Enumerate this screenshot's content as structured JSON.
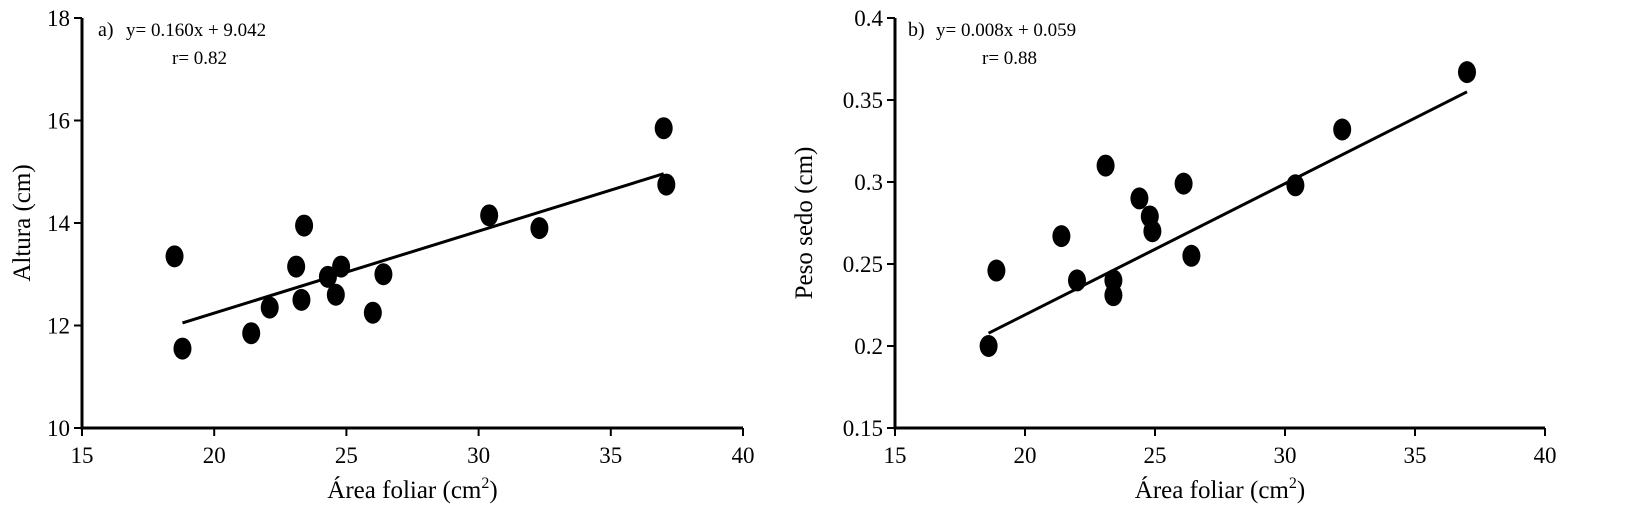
{
  "chart_data": [
    {
      "type": "scatter",
      "panel": "a)",
      "equation": "y= 0.160x + 9.042",
      "r_label": "r= 0.82",
      "xlabel": "Área foliar (cm",
      "xlabel_sup": "2",
      "xlabel_end": ")",
      "ylabel": "Altura (cm)",
      "xlim": [
        15,
        40
      ],
      "ylim": [
        10,
        18
      ],
      "xticks": [
        "15",
        "20",
        "25",
        "30",
        "35",
        "40"
      ],
      "yticks": [
        "10",
        "12",
        "14",
        "16",
        "18"
      ],
      "trendline": {
        "slope": 0.16,
        "intercept": 9.042,
        "x_range": [
          18.8,
          37.0
        ]
      },
      "points": [
        {
          "x": 18.5,
          "y": 13.35
        },
        {
          "x": 18.8,
          "y": 11.55
        },
        {
          "x": 21.4,
          "y": 11.85
        },
        {
          "x": 22.1,
          "y": 12.35
        },
        {
          "x": 23.1,
          "y": 13.15
        },
        {
          "x": 23.3,
          "y": 12.5
        },
        {
          "x": 23.4,
          "y": 13.95
        },
        {
          "x": 24.3,
          "y": 12.95
        },
        {
          "x": 24.6,
          "y": 12.6
        },
        {
          "x": 24.8,
          "y": 13.15
        },
        {
          "x": 26.0,
          "y": 12.25
        },
        {
          "x": 26.4,
          "y": 13.0
        },
        {
          "x": 30.4,
          "y": 14.15
        },
        {
          "x": 32.3,
          "y": 13.9
        },
        {
          "x": 37.0,
          "y": 15.85
        },
        {
          "x": 37.1,
          "y": 14.75
        }
      ]
    },
    {
      "type": "scatter",
      "panel": "b)",
      "equation": "y= 0.008x + 0.059",
      "r_label": "r= 0.88",
      "xlabel": "Área foliar (cm",
      "xlabel_sup": "2",
      "xlabel_end": ")",
      "ylabel": "Peso sedo (cm)",
      "xlim": [
        15,
        40
      ],
      "ylim": [
        0.15,
        0.4
      ],
      "xticks": [
        "15",
        "20",
        "25",
        "30",
        "35",
        "40"
      ],
      "yticks": [
        "0.15",
        "0.2",
        "0.25",
        "0.3",
        "0.35",
        "0.4"
      ],
      "trendline": {
        "slope": 0.008,
        "intercept": 0.059,
        "x_range": [
          18.6,
          37.0
        ]
      },
      "points": [
        {
          "x": 18.6,
          "y": 0.2
        },
        {
          "x": 18.9,
          "y": 0.246
        },
        {
          "x": 21.4,
          "y": 0.267
        },
        {
          "x": 22.0,
          "y": 0.24
        },
        {
          "x": 23.1,
          "y": 0.31
        },
        {
          "x": 23.4,
          "y": 0.24
        },
        {
          "x": 23.4,
          "y": 0.231
        },
        {
          "x": 24.4,
          "y": 0.29
        },
        {
          "x": 24.8,
          "y": 0.279
        },
        {
          "x": 24.9,
          "y": 0.27
        },
        {
          "x": 26.1,
          "y": 0.299
        },
        {
          "x": 26.4,
          "y": 0.255
        },
        {
          "x": 30.4,
          "y": 0.298
        },
        {
          "x": 32.2,
          "y": 0.332
        },
        {
          "x": 37.0,
          "y": 0.367
        }
      ]
    }
  ]
}
